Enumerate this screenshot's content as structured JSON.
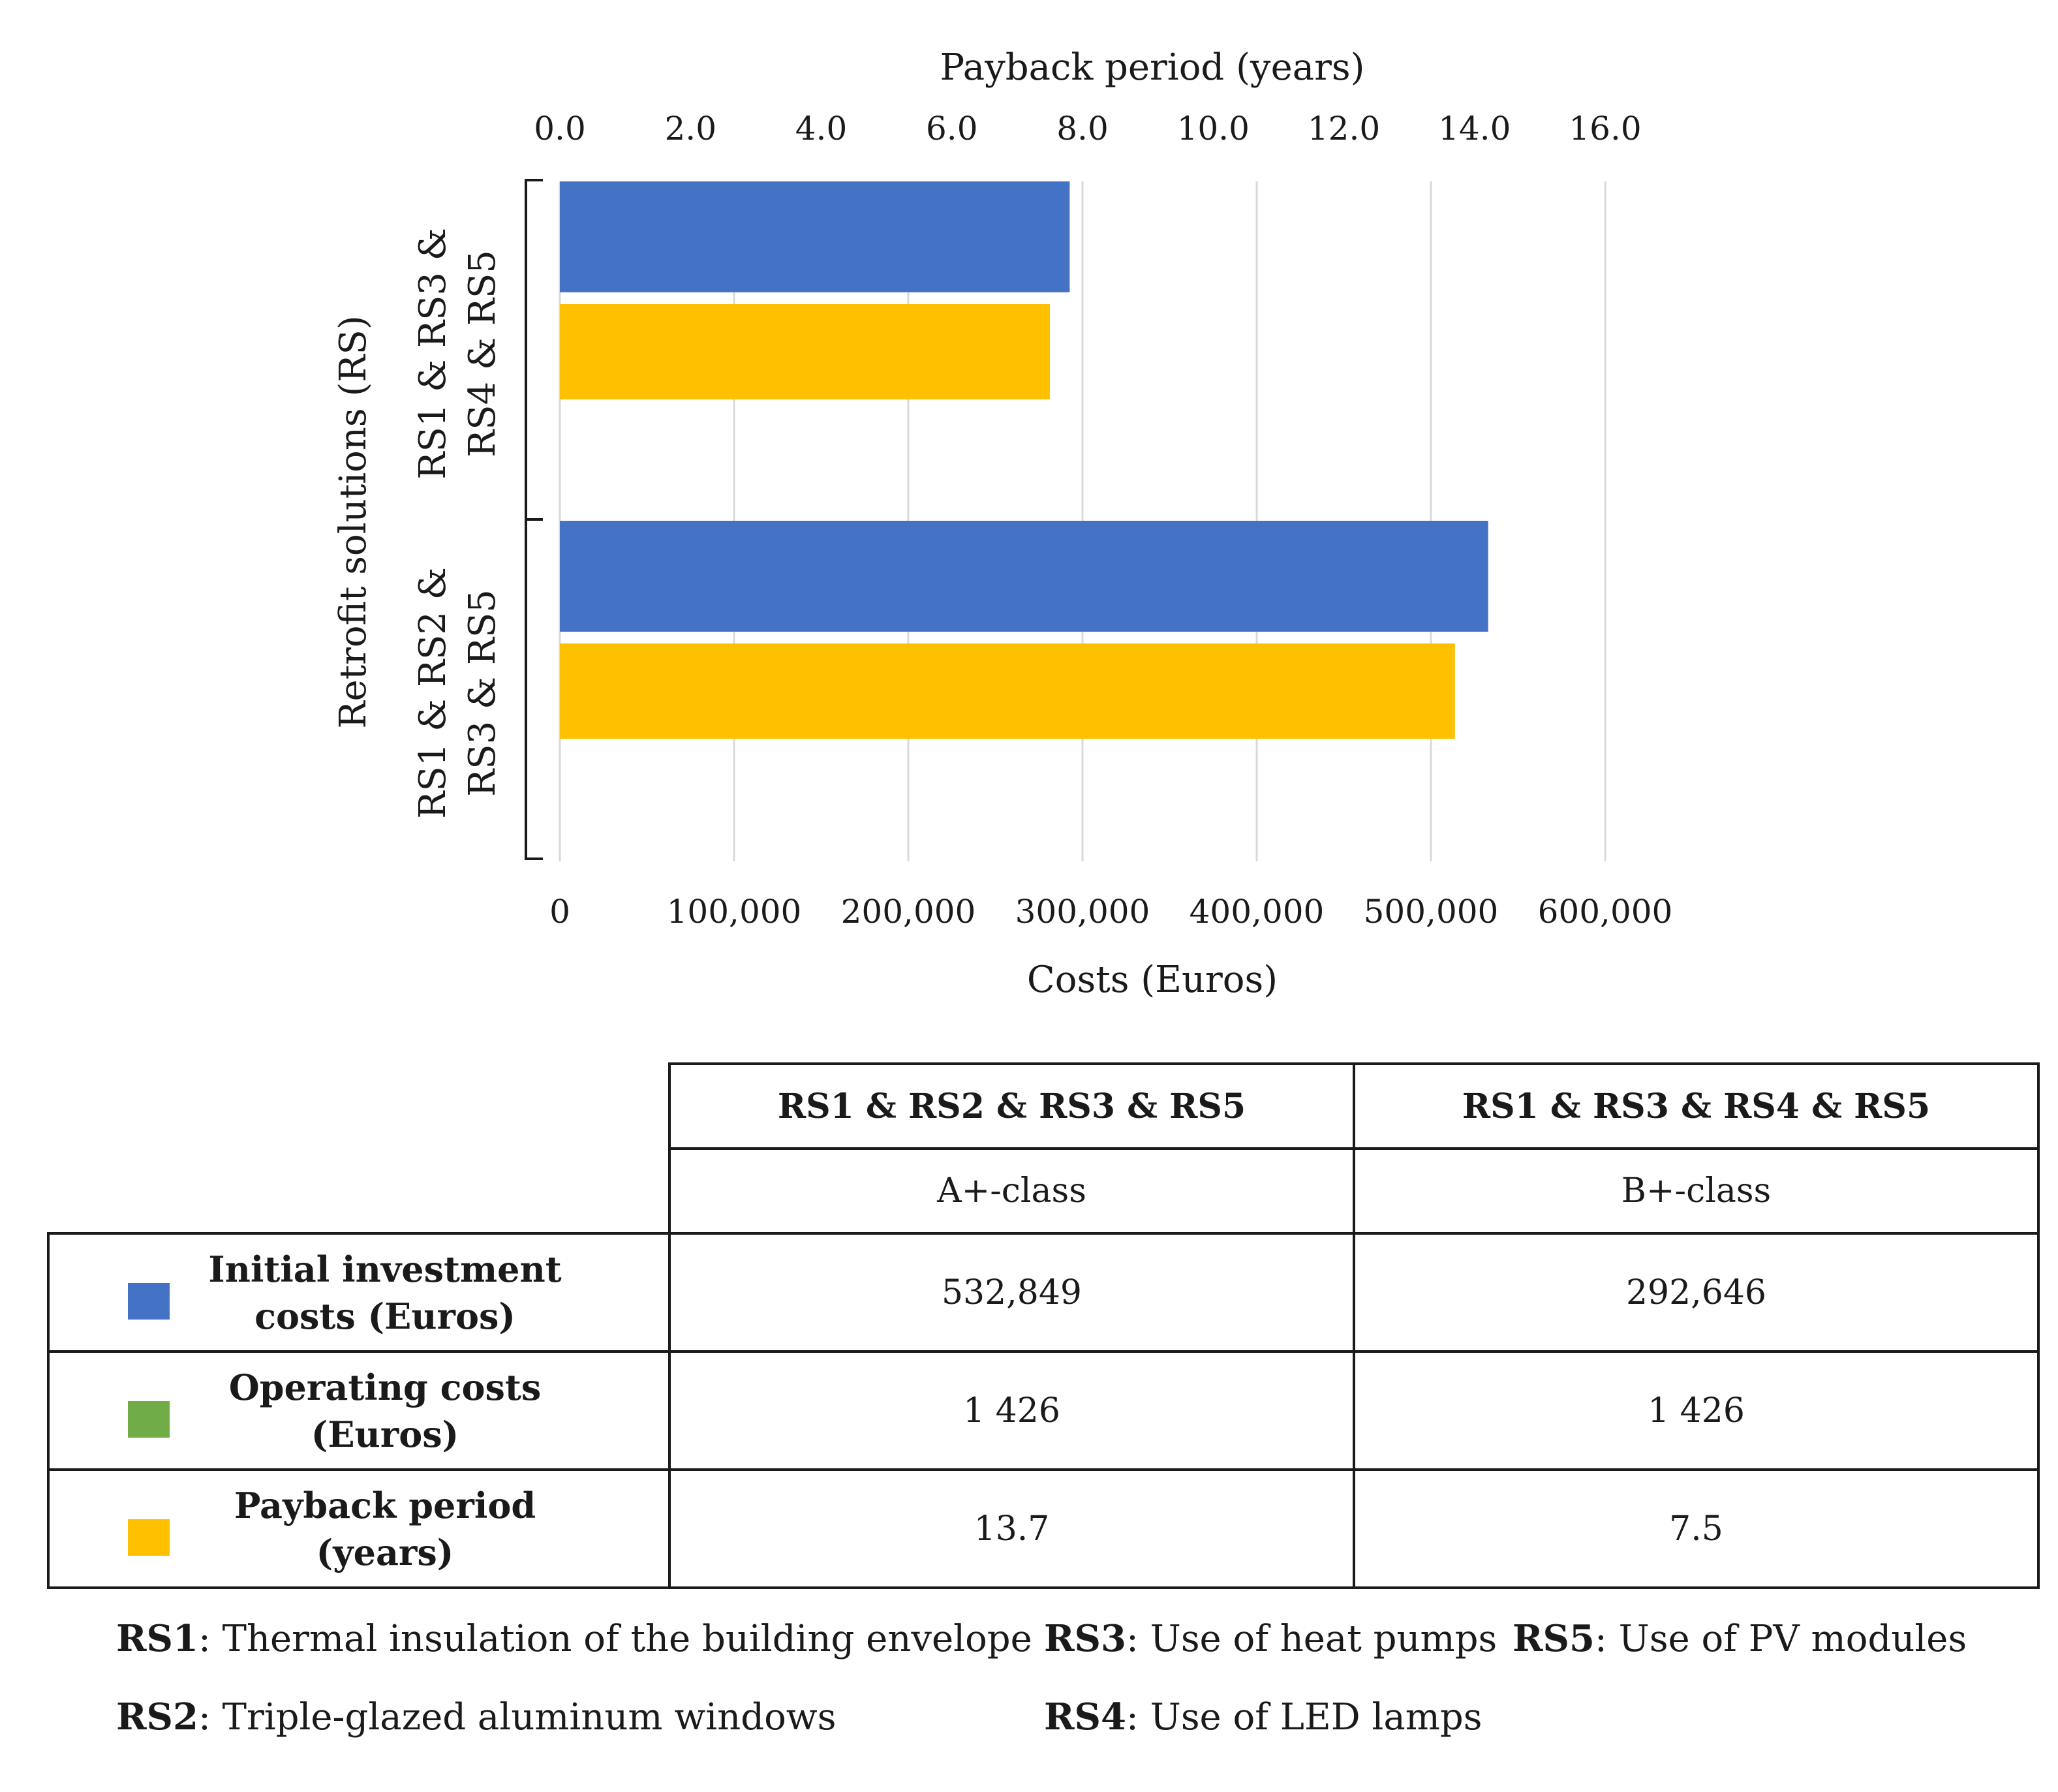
{
  "colors": {
    "initial": "#4472C4",
    "operating": "#70AD47",
    "payback": "#FFC000",
    "grid": "#d9d9d9",
    "text": "#1a1a1a"
  },
  "chart_data": {
    "type": "bar",
    "orientation": "horizontal",
    "ylabel": "Retrofit solutions (RS)",
    "categories": [
      {
        "line1": "RS1 & RS3 &",
        "line2": "RS4 & RS5"
      },
      {
        "line1": "RS1 & RS2 &",
        "line2": "RS3 & RS5"
      }
    ],
    "bottom_axis": {
      "title": "Costs (Euros)",
      "range": [
        0,
        600000
      ],
      "ticks": [
        0,
        100000,
        200000,
        300000,
        400000,
        500000,
        600000
      ],
      "tick_labels": [
        "0",
        "100,000",
        "200,000",
        "300,000",
        "400,000",
        "500,000",
        "600,000"
      ]
    },
    "top_axis": {
      "title": "Payback period (years)",
      "range": [
        0,
        16
      ],
      "ticks": [
        0,
        2,
        4,
        6,
        8,
        10,
        12,
        14,
        16
      ],
      "tick_labels": [
        "0.0",
        "2.0",
        "4.0",
        "6.0",
        "8.0",
        "10.0",
        "12.0",
        "14.0",
        "16.0"
      ]
    },
    "series": [
      {
        "name": "Initial investment costs (Euros)",
        "axis": "bottom",
        "color": "#4472C4",
        "values": [
          292646,
          532849
        ]
      },
      {
        "name": "Payback period (years)",
        "axis": "top",
        "color": "#FFC000",
        "values": [
          7.5,
          13.7
        ]
      }
    ]
  },
  "table": {
    "columns": [
      {
        "header": "RS1 & RS2 & RS3 & RS5",
        "class": "A+-class"
      },
      {
        "header": "RS1 & RS3 & RS4 & RS5",
        "class": "B+-class"
      }
    ],
    "rows": [
      {
        "label_line1": "Initial investment",
        "label_line2": "costs (Euros)",
        "color": "#4472C4",
        "values": [
          "532,849",
          "292,646"
        ]
      },
      {
        "label_line1": "Operating costs",
        "label_line2": "(Euros)",
        "color": "#70AD47",
        "values": [
          "1 426",
          "1 426"
        ]
      },
      {
        "label_line1": "Payback period",
        "label_line2": "(years)",
        "color": "#FFC000",
        "values": [
          "13.7",
          "7.5"
        ]
      }
    ]
  },
  "footnotes": {
    "rs1": {
      "code": "RS1",
      "text": ": Thermal insulation of the building envelope"
    },
    "rs2": {
      "code": "RS2",
      "text": ": Triple-glazed aluminum windows"
    },
    "rs3": {
      "code": "RS3",
      "text": ": Use of heat pumps"
    },
    "rs4": {
      "code": "RS4",
      "text": ": Use of LED lamps"
    },
    "rs5": {
      "code": "RS5",
      "text": ": Use of PV modules"
    }
  }
}
